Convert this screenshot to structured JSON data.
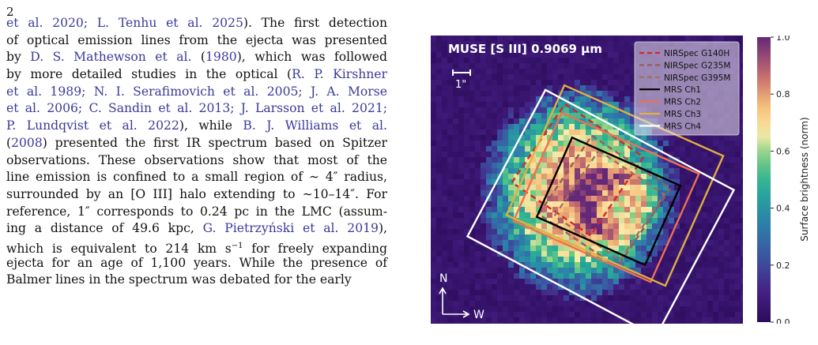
{
  "page": {
    "number": "2"
  },
  "text_lines": [
    [
      {
        "t": "et al. 2020; L. Tenhu et al. 2025",
        "c": true
      },
      {
        "t": "). The first detection",
        "c": false
      }
    ],
    [
      {
        "t": "of optical emission lines from the ejecta was presented",
        "c": false
      }
    ],
    [
      {
        "t": "by ",
        "c": false
      },
      {
        "t": "D. S. Mathewson et al.",
        "c": true
      },
      {
        "t": " (",
        "c": false
      },
      {
        "t": "1980",
        "c": true
      },
      {
        "t": "), which was followed",
        "c": false
      }
    ],
    [
      {
        "t": "by more detailed studies in the optical (",
        "c": false
      },
      {
        "t": "R. P. Kirshner",
        "c": true
      }
    ],
    [
      {
        "t": "et al. 1989; N. I. Serafimovich et al. 2005; J. A. Morse",
        "c": true
      }
    ],
    [
      {
        "t": "et al. 2006; C. Sandin et al. 2013; J. Larsson et al. 2021;",
        "c": true
      }
    ],
    [
      {
        "t": "P. Lundqvist et al. 2022",
        "c": true
      },
      {
        "t": "), while ",
        "c": false
      },
      {
        "t": "B. J. Williams et al.",
        "c": true
      }
    ],
    [
      {
        "t": "(",
        "c": false
      },
      {
        "t": "2008",
        "c": true
      },
      {
        "t": ") presented the first IR spectrum based on Spitzer",
        "c": false
      }
    ],
    [
      {
        "t": "observations. These observations show that most of the",
        "c": false
      }
    ],
    [
      {
        "t": "line emission is confined to a small region of ∼ 4″ radius,",
        "c": false
      }
    ],
    [
      {
        "t": "surrounded by an [O III] halo extending to ∼10–14″. For",
        "c": false
      }
    ],
    [
      {
        "t": "reference, 1″ corresponds to 0.24 pc in the LMC (assum-",
        "c": false
      }
    ],
    [
      {
        "t": "ing a distance of 49.6 kpc, ",
        "c": false
      },
      {
        "t": "G. Pietrzyński et al. 2019",
        "c": true
      },
      {
        "t": "),",
        "c": false
      }
    ],
    [
      {
        "t": "which is equivalent to 214 km s",
        "c": false
      },
      {
        "t": "−1",
        "c": false,
        "sup": true
      },
      {
        "t": " for freely expanding",
        "c": false
      }
    ],
    [
      {
        "t": "ejecta for an age of 1,100 years. While the presence of",
        "c": false
      }
    ],
    [
      {
        "t": "Balmer lines in the spectrum was debated for the early",
        "c": false
      }
    ]
  ],
  "figure": {
    "title": "MUSE [S III] 0.9069 µm",
    "scale_bar_label": "1\"",
    "compass_north": "N",
    "compass_west": "W",
    "legend": [
      {
        "label": "NIRSpec G140H",
        "color": "#d62728",
        "dash": true
      },
      {
        "label": "NIRSpec G235M",
        "color": "#9a5a5a",
        "dash": true
      },
      {
        "label": "NIRSpec G395M",
        "color": "#a0705a",
        "dash": true
      },
      {
        "label": "MRS Ch1",
        "color": "#000000",
        "dash": false
      },
      {
        "label": "MRS Ch2",
        "color": "#f07050",
        "dash": false
      },
      {
        "label": "MRS Ch3",
        "color": "#e0b040",
        "dash": false
      },
      {
        "label": "MRS Ch4",
        "color": "#ffffff",
        "dash": false
      }
    ],
    "colorbar": {
      "label": "Surface brightness (norm)",
      "ticks": [
        "0.0",
        "0.2",
        "0.4",
        "0.6",
        "0.8",
        "1.0"
      ]
    }
  }
}
